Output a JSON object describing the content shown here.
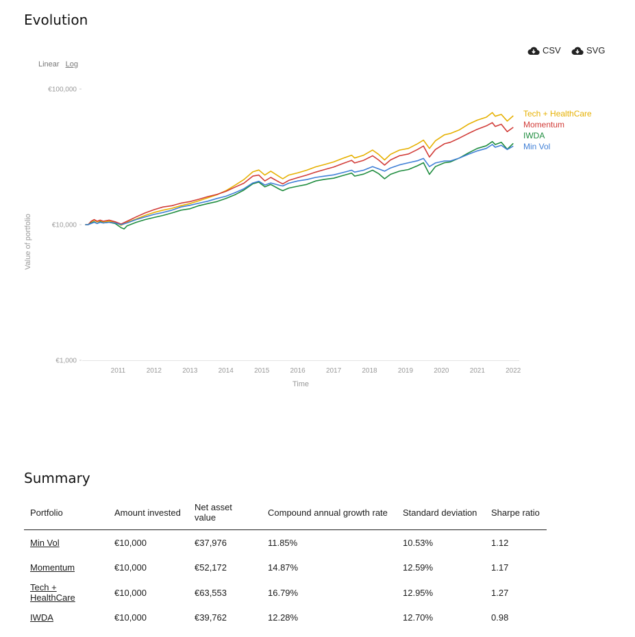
{
  "evolution": {
    "title": "Evolution",
    "export_csv": "CSV",
    "export_svg": "SVG",
    "icons": [
      "cloud-download-icon",
      "cloud-download-icon"
    ],
    "scale_linear": "Linear",
    "scale_log": "Log",
    "selected_scale": "Log"
  },
  "chart_data": {
    "type": "line",
    "xlabel": "Time",
    "ylabel": "Value of portfolio",
    "y_scale": "log",
    "y_ticks": [
      "€1,000",
      "€10,000",
      "€100,000"
    ],
    "y_tick_values": [
      1000,
      10000,
      100000
    ],
    "ylim": [
      1000,
      100000
    ],
    "x_ticks": [
      "2011",
      "2012",
      "2013",
      "2014",
      "2015",
      "2016",
      "2017",
      "2018",
      "2019",
      "2020",
      "2021",
      "2022"
    ],
    "xlim": [
      "2010-07",
      "2022-09"
    ],
    "grid": false,
    "legend": "end-of-line labels",
    "series": [
      {
        "name": "Tech + HealthCare",
        "color": "#e6b000",
        "points": [
          [
            "2010-08",
            10000
          ],
          [
            "2010-09",
            10000
          ],
          [
            "2010-10",
            10500
          ],
          [
            "2010-11",
            10800
          ],
          [
            "2010-12",
            10500
          ],
          [
            "2011-01",
            10700
          ],
          [
            "2011-02",
            10500
          ],
          [
            "2011-04",
            10600
          ],
          [
            "2011-06",
            10400
          ],
          [
            "2011-08",
            9900
          ],
          [
            "2011-10",
            10400
          ],
          [
            "2012-01",
            11000
          ],
          [
            "2012-04",
            11700
          ],
          [
            "2012-07",
            12300
          ],
          [
            "2012-10",
            12800
          ],
          [
            "2013-01",
            13200
          ],
          [
            "2013-04",
            13800
          ],
          [
            "2013-07",
            14300
          ],
          [
            "2013-10",
            15000
          ],
          [
            "2014-01",
            15800
          ],
          [
            "2014-04",
            16600
          ],
          [
            "2014-07",
            17800
          ],
          [
            "2014-10",
            19500
          ],
          [
            "2015-01",
            21500
          ],
          [
            "2015-04",
            24500
          ],
          [
            "2015-06",
            25300
          ],
          [
            "2015-08",
            23200
          ],
          [
            "2015-10",
            24800
          ],
          [
            "2016-01",
            22500
          ],
          [
            "2016-02",
            21800
          ],
          [
            "2016-04",
            23200
          ],
          [
            "2016-07",
            24100
          ],
          [
            "2016-10",
            25200
          ],
          [
            "2017-01",
            26700
          ],
          [
            "2017-04",
            27800
          ],
          [
            "2017-07",
            29000
          ],
          [
            "2017-10",
            30800
          ],
          [
            "2018-01",
            32500
          ],
          [
            "2018-02",
            31000
          ],
          [
            "2018-05",
            32500
          ],
          [
            "2018-08",
            35500
          ],
          [
            "2018-10",
            33000
          ],
          [
            "2018-12",
            30000
          ],
          [
            "2019-02",
            33000
          ],
          [
            "2019-05",
            35500
          ],
          [
            "2019-08",
            36500
          ],
          [
            "2019-11",
            39500
          ],
          [
            "2020-01",
            42000
          ],
          [
            "2020-03",
            36500
          ],
          [
            "2020-05",
            41500
          ],
          [
            "2020-08",
            46000
          ],
          [
            "2020-10",
            47000
          ],
          [
            "2021-01",
            50000
          ],
          [
            "2021-04",
            55000
          ],
          [
            "2021-07",
            59000
          ],
          [
            "2021-10",
            62000
          ],
          [
            "2021-12",
            67000
          ],
          [
            "2022-01",
            63000
          ],
          [
            "2022-03",
            65000
          ],
          [
            "2022-05",
            58000
          ],
          [
            "2022-07",
            63553
          ]
        ]
      },
      {
        "name": "Momentum",
        "color": "#d13b37",
        "points": [
          [
            "2010-08",
            10000
          ],
          [
            "2010-09",
            10000
          ],
          [
            "2010-10",
            10600
          ],
          [
            "2010-11",
            10900
          ],
          [
            "2010-12",
            10600
          ],
          [
            "2011-01",
            10800
          ],
          [
            "2011-02",
            10600
          ],
          [
            "2011-04",
            10800
          ],
          [
            "2011-06",
            10500
          ],
          [
            "2011-08",
            10100
          ],
          [
            "2011-10",
            10600
          ],
          [
            "2012-01",
            11400
          ],
          [
            "2012-04",
            12200
          ],
          [
            "2012-07",
            12900
          ],
          [
            "2012-10",
            13500
          ],
          [
            "2013-01",
            13800
          ],
          [
            "2013-04",
            14400
          ],
          [
            "2013-07",
            14800
          ],
          [
            "2013-10",
            15400
          ],
          [
            "2014-01",
            16100
          ],
          [
            "2014-04",
            16700
          ],
          [
            "2014-07",
            17600
          ],
          [
            "2014-10",
            18900
          ],
          [
            "2015-01",
            20200
          ],
          [
            "2015-04",
            22800
          ],
          [
            "2015-06",
            23200
          ],
          [
            "2015-08",
            21000
          ],
          [
            "2015-10",
            22300
          ],
          [
            "2016-01",
            20500
          ],
          [
            "2016-02",
            20000
          ],
          [
            "2016-04",
            21200
          ],
          [
            "2016-07",
            22200
          ],
          [
            "2016-10",
            23200
          ],
          [
            "2017-01",
            24400
          ],
          [
            "2017-04",
            25500
          ],
          [
            "2017-07",
            26600
          ],
          [
            "2017-10",
            28200
          ],
          [
            "2018-01",
            29800
          ],
          [
            "2018-02",
            28500
          ],
          [
            "2018-05",
            29800
          ],
          [
            "2018-08",
            32200
          ],
          [
            "2018-10",
            30000
          ],
          [
            "2018-12",
            27500
          ],
          [
            "2019-02",
            30000
          ],
          [
            "2019-05",
            32200
          ],
          [
            "2019-08",
            33200
          ],
          [
            "2019-11",
            35800
          ],
          [
            "2020-01",
            38000
          ],
          [
            "2020-03",
            31500
          ],
          [
            "2020-05",
            35800
          ],
          [
            "2020-08",
            39500
          ],
          [
            "2020-10",
            40500
          ],
          [
            "2021-01",
            43500
          ],
          [
            "2021-04",
            47000
          ],
          [
            "2021-07",
            50500
          ],
          [
            "2021-10",
            53500
          ],
          [
            "2021-12",
            56500
          ],
          [
            "2022-01",
            53000
          ],
          [
            "2022-03",
            55000
          ],
          [
            "2022-05",
            48500
          ],
          [
            "2022-07",
            52172
          ]
        ]
      },
      {
        "name": "IWDA",
        "color": "#1e8c3e",
        "points": [
          [
            "2010-08",
            10000
          ],
          [
            "2010-09",
            10000
          ],
          [
            "2010-10",
            10300
          ],
          [
            "2010-11",
            10500
          ],
          [
            "2010-12",
            10200
          ],
          [
            "2011-01",
            10500
          ],
          [
            "2011-02",
            10300
          ],
          [
            "2011-04",
            10400
          ],
          [
            "2011-06",
            10200
          ],
          [
            "2011-08",
            9500
          ],
          [
            "2011-09",
            9300
          ],
          [
            "2011-10",
            9800
          ],
          [
            "2012-01",
            10400
          ],
          [
            "2012-04",
            10900
          ],
          [
            "2012-07",
            11300
          ],
          [
            "2012-10",
            11700
          ],
          [
            "2013-01",
            12200
          ],
          [
            "2013-04",
            12800
          ],
          [
            "2013-07",
            13100
          ],
          [
            "2013-10",
            13800
          ],
          [
            "2014-01",
            14300
          ],
          [
            "2014-04",
            14800
          ],
          [
            "2014-07",
            15600
          ],
          [
            "2014-10",
            16600
          ],
          [
            "2015-01",
            18000
          ],
          [
            "2015-04",
            20000
          ],
          [
            "2015-06",
            20600
          ],
          [
            "2015-08",
            19000
          ],
          [
            "2015-10",
            19800
          ],
          [
            "2016-01",
            18200
          ],
          [
            "2016-02",
            17800
          ],
          [
            "2016-04",
            18600
          ],
          [
            "2016-07",
            19200
          ],
          [
            "2016-10",
            19800
          ],
          [
            "2017-01",
            21000
          ],
          [
            "2017-04",
            21600
          ],
          [
            "2017-07",
            22000
          ],
          [
            "2017-10",
            23000
          ],
          [
            "2018-01",
            24000
          ],
          [
            "2018-02",
            22800
          ],
          [
            "2018-05",
            23600
          ],
          [
            "2018-08",
            25200
          ],
          [
            "2018-10",
            23800
          ],
          [
            "2018-12",
            21800
          ],
          [
            "2019-02",
            23500
          ],
          [
            "2019-05",
            24800
          ],
          [
            "2019-08",
            25500
          ],
          [
            "2019-11",
            27200
          ],
          [
            "2020-01",
            28600
          ],
          [
            "2020-03",
            23500
          ],
          [
            "2020-05",
            26800
          ],
          [
            "2020-08",
            28600
          ],
          [
            "2020-10",
            29000
          ],
          [
            "2021-01",
            31000
          ],
          [
            "2021-04",
            33800
          ],
          [
            "2021-07",
            36500
          ],
          [
            "2021-10",
            38200
          ],
          [
            "2021-12",
            41000
          ],
          [
            "2022-01",
            39000
          ],
          [
            "2022-03",
            40500
          ],
          [
            "2022-05",
            36000
          ],
          [
            "2022-07",
            39762
          ]
        ]
      },
      {
        "name": "Min Vol",
        "color": "#3f7fd6",
        "points": [
          [
            "2010-08",
            10000
          ],
          [
            "2010-09",
            10000
          ],
          [
            "2010-10",
            10200
          ],
          [
            "2010-11",
            10400
          ],
          [
            "2010-12",
            10200
          ],
          [
            "2011-01",
            10400
          ],
          [
            "2011-02",
            10300
          ],
          [
            "2011-04",
            10400
          ],
          [
            "2011-06",
            10300
          ],
          [
            "2011-08",
            10000
          ],
          [
            "2011-10",
            10300
          ],
          [
            "2012-01",
            10900
          ],
          [
            "2012-04",
            11400
          ],
          [
            "2012-07",
            11900
          ],
          [
            "2012-10",
            12300
          ],
          [
            "2013-01",
            12800
          ],
          [
            "2013-04",
            13500
          ],
          [
            "2013-07",
            13900
          ],
          [
            "2013-10",
            14400
          ],
          [
            "2014-01",
            14900
          ],
          [
            "2014-04",
            15600
          ],
          [
            "2014-07",
            16200
          ],
          [
            "2014-10",
            17200
          ],
          [
            "2015-01",
            18400
          ],
          [
            "2015-04",
            20300
          ],
          [
            "2015-06",
            20900
          ],
          [
            "2015-08",
            19600
          ],
          [
            "2015-10",
            20300
          ],
          [
            "2016-01",
            19500
          ],
          [
            "2016-02",
            19300
          ],
          [
            "2016-04",
            20200
          ],
          [
            "2016-07",
            21000
          ],
          [
            "2016-10",
            21500
          ],
          [
            "2017-01",
            22300
          ],
          [
            "2017-04",
            22800
          ],
          [
            "2017-07",
            23300
          ],
          [
            "2017-10",
            24200
          ],
          [
            "2018-01",
            25200
          ],
          [
            "2018-02",
            24400
          ],
          [
            "2018-05",
            25200
          ],
          [
            "2018-08",
            26800
          ],
          [
            "2018-10",
            25800
          ],
          [
            "2018-12",
            24800
          ],
          [
            "2019-02",
            26200
          ],
          [
            "2019-05",
            27600
          ],
          [
            "2019-08",
            28600
          ],
          [
            "2019-11",
            29600
          ],
          [
            "2020-01",
            30800
          ],
          [
            "2020-03",
            26800
          ],
          [
            "2020-05",
            28500
          ],
          [
            "2020-08",
            29500
          ],
          [
            "2020-10",
            29500
          ],
          [
            "2021-01",
            31000
          ],
          [
            "2021-04",
            33000
          ],
          [
            "2021-07",
            35000
          ],
          [
            "2021-10",
            36500
          ],
          [
            "2021-12",
            39000
          ],
          [
            "2022-01",
            37200
          ],
          [
            "2022-03",
            38500
          ],
          [
            "2022-05",
            35800
          ],
          [
            "2022-07",
            37976
          ]
        ]
      }
    ]
  },
  "summary": {
    "title": "Summary",
    "headers": [
      "Portfolio",
      "Amount invested",
      "Net asset value",
      "Compound annual growth rate",
      "Standard deviation",
      "Sharpe ratio"
    ],
    "rows": [
      {
        "portfolio": "Min Vol",
        "invested": "€10,000",
        "nav": "€37,976",
        "cagr": "11.85%",
        "std": "10.53%",
        "sharpe": "1.12"
      },
      {
        "portfolio": "Momentum",
        "invested": "€10,000",
        "nav": "€52,172",
        "cagr": "14.87%",
        "std": "12.59%",
        "sharpe": "1.17"
      },
      {
        "portfolio": "Tech + HealthCare",
        "invested": "€10,000",
        "nav": "€63,553",
        "cagr": "16.79%",
        "std": "12.95%",
        "sharpe": "1.27"
      },
      {
        "portfolio": "IWDA",
        "invested": "€10,000",
        "nav": "€39,762",
        "cagr": "12.28%",
        "std": "12.70%",
        "sharpe": "0.98"
      }
    ]
  }
}
